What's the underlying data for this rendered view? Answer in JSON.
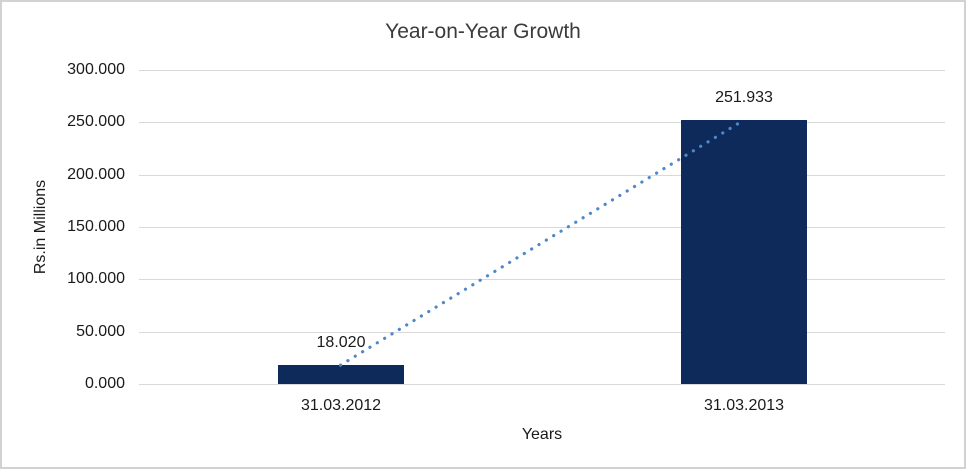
{
  "chart_data": {
    "type": "bar",
    "title": "Year-on-Year Growth",
    "categories": [
      "31.03.2012",
      "31.03.2013"
    ],
    "values": [
      18.02,
      251.933
    ],
    "data_labels": [
      "18.020",
      "251.933"
    ],
    "xlabel": "Years",
    "ylabel": "Rs.in Millions",
    "ylim": [
      0,
      300
    ],
    "yticks": [
      0,
      50,
      100,
      150,
      200,
      250,
      300
    ],
    "ytick_labels": [
      "0.000",
      "50.000",
      "100.000",
      "150.000",
      "200.000",
      "250.000",
      "300.000"
    ],
    "grid": true,
    "legend": false,
    "bar_color": "#0d2a5b",
    "gridline_color": "#d9d9d9",
    "trendline": {
      "type": "linear",
      "style": "dotted",
      "color": "#4e88c8"
    }
  }
}
